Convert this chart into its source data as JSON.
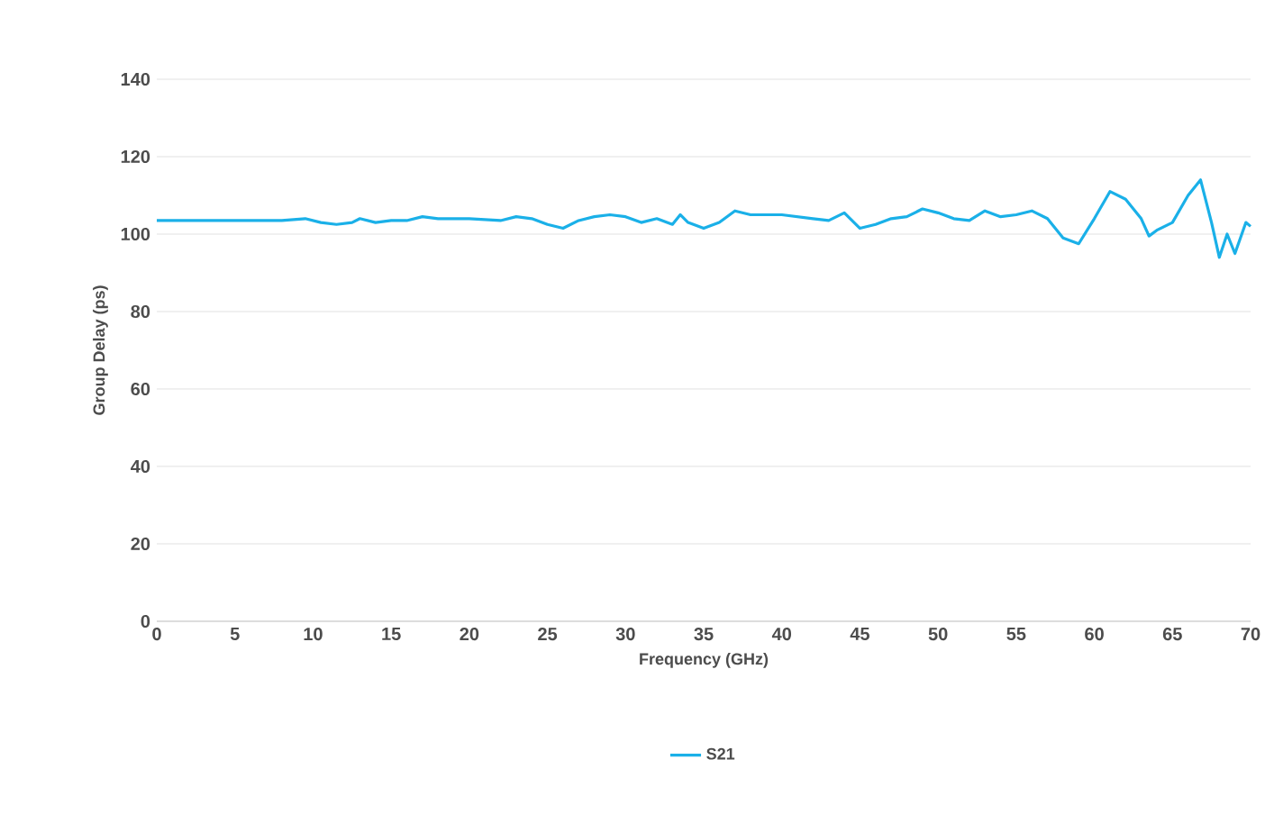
{
  "chart_data": {
    "type": "line",
    "xlabel": "Frequency (GHz)",
    "ylabel": "Group Delay (ps)",
    "x": [
      0,
      2,
      4,
      6,
      8,
      9.5,
      10.5,
      11.5,
      12.5,
      13,
      14,
      15,
      16,
      17,
      18,
      20,
      22,
      23,
      24,
      25,
      26,
      27,
      28,
      29,
      30,
      31,
      32,
      33,
      33.5,
      34,
      35,
      36,
      37,
      38,
      40,
      42,
      43,
      44,
      45,
      46,
      47,
      48,
      49,
      50,
      51,
      52,
      53,
      54,
      55,
      56,
      57,
      58,
      59,
      60,
      61,
      62,
      63,
      63.5,
      64,
      65,
      66,
      66.8,
      67.5,
      68,
      68.5,
      69,
      69.7,
      70
    ],
    "series": [
      {
        "name": "S21",
        "color": "#1ab0e8",
        "values": [
          103.5,
          103.5,
          103.5,
          103.5,
          103.5,
          104,
          103,
          102.5,
          103,
          104,
          103,
          103.5,
          103.5,
          104.5,
          104,
          104,
          103.5,
          104.5,
          104,
          102.5,
          101.5,
          103.5,
          104.5,
          105,
          104.5,
          103,
          104,
          102.5,
          105,
          103,
          101.5,
          103,
          106,
          105,
          105,
          104,
          103.5,
          105.5,
          101.5,
          102.5,
          104,
          104.5,
          106.5,
          105.5,
          104,
          103.5,
          106,
          104.5,
          105,
          106,
          104,
          99,
          97.5,
          104,
          111,
          109,
          104,
          99.5,
          101,
          103,
          110,
          114,
          103,
          94,
          100,
          95,
          103,
          102
        ]
      }
    ],
    "xlim": [
      0,
      70
    ],
    "ylim": [
      0,
      140
    ],
    "xticks": [
      0,
      5,
      10,
      15,
      20,
      25,
      30,
      35,
      40,
      45,
      50,
      55,
      60,
      65,
      70
    ],
    "yticks": [
      0,
      20,
      40,
      60,
      80,
      100,
      120,
      140
    ],
    "grid": "y",
    "legend": "bottom",
    "marker": "none",
    "line_style": "solid"
  }
}
